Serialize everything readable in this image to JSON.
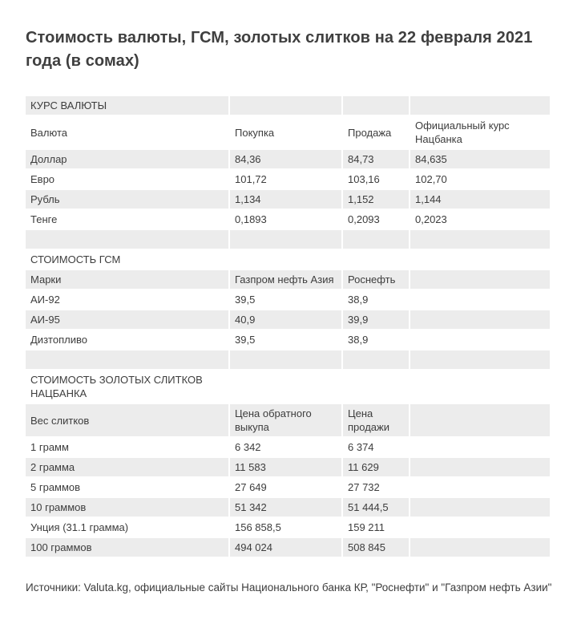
{
  "page": {
    "title": "Стоимость валюты, ГСМ, золотых слитков на 22 февраля 2021 года (в сомах)",
    "source_note": "Источники: Valuta.kg, официальные сайты Национального банка КР, \"Роснефти\" и \"Газпром нефть Азии\""
  },
  "colors": {
    "row_stripe": "#ececec",
    "row_alt": "#ffffff",
    "text": "#3d3d3d",
    "title": "#3f3f3f"
  },
  "chart_data": [
    {
      "type": "table",
      "section_title": "КУРС ВАЛЮТЫ",
      "headers": [
        "Валюта",
        "Покупка",
        "Продажа",
        "Официальный курс Нацбанка"
      ],
      "rows": [
        [
          "Доллар",
          "84,36",
          "84,73",
          "84,635"
        ],
        [
          "Евро",
          "101,72",
          "103,16",
          "102,70"
        ],
        [
          "Рубль",
          "1,134",
          "1,152",
          "1,144"
        ],
        [
          "Тенге",
          "0,1893",
          "0,2093",
          "0,2023"
        ]
      ]
    },
    {
      "type": "table",
      "section_title": "СТОИМОСТЬ ГСМ",
      "headers": [
        "Марки",
        "Газпром нефть Азия",
        "Роснефть",
        ""
      ],
      "rows": [
        [
          "АИ-92",
          "39,5",
          "38,9",
          ""
        ],
        [
          "АИ-95",
          "40,9",
          "39,9",
          ""
        ],
        [
          "Дизтопливо",
          "39,5",
          "38,9",
          ""
        ]
      ]
    },
    {
      "type": "table",
      "section_title": "СТОИМОСТЬ ЗОЛОТЫХ СЛИТКОВ НАЦБАНКА",
      "headers": [
        "Вес слитков",
        "Цена обратного выкупа",
        "Цена продажи",
        ""
      ],
      "rows": [
        [
          "1 грамм",
          "6 342",
          "6 374",
          ""
        ],
        [
          "2 грамма",
          "11 583",
          "11 629",
          ""
        ],
        [
          "5 граммов",
          "27 649",
          "27 732",
          ""
        ],
        [
          "10 граммов",
          "51 342",
          "51 444,5",
          ""
        ],
        [
          "Унция (31.1 грамма)",
          "156 858,5",
          "159 211",
          ""
        ],
        [
          "100 граммов",
          "494 024",
          "508 845",
          ""
        ]
      ]
    }
  ]
}
